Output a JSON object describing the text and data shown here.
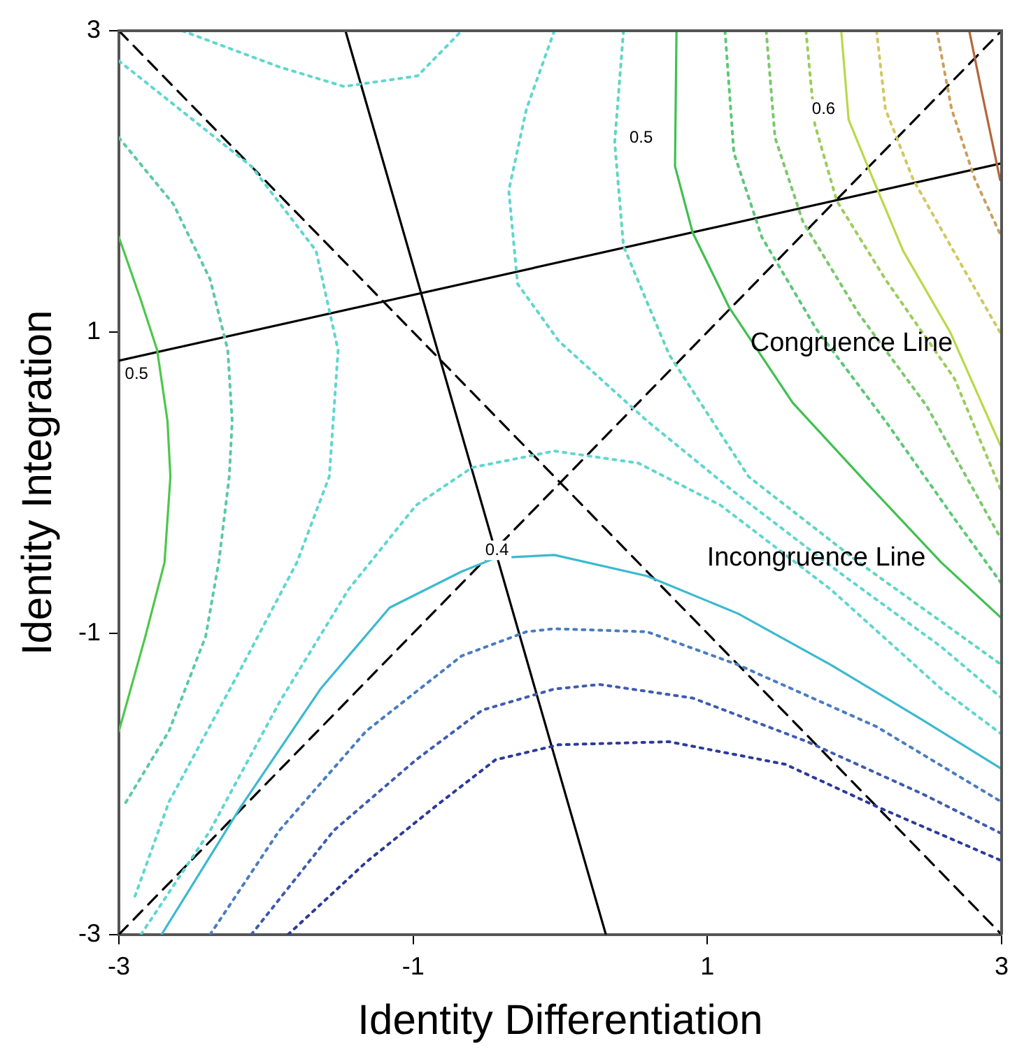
{
  "chart_data": {
    "type": "line",
    "xlabel": "Identity Differentiation",
    "ylabel": "Identity Integration",
    "xlim": [
      -3,
      3
    ],
    "ylim": [
      -3,
      3
    ],
    "xticks": [
      -3,
      -1,
      1,
      3
    ],
    "yticks": [
      -3,
      -1,
      1,
      3
    ],
    "grid": false,
    "legend": false,
    "marker": "none",
    "series": [
      {
        "color": "#4cc74c",
        "line_style": "solid",
        "x": [
          -3.0,
          -2.85,
          -2.74,
          -2.67,
          -2.65,
          -2.69,
          -2.82,
          -3.0
        ],
        "values": [
          1.63,
          1.21,
          0.88,
          0.41,
          0.04,
          -0.53,
          -1.02,
          -1.65
        ]
      },
      {
        "color": "#5cc9a0",
        "line_style": "dotted",
        "x": [
          -3.0,
          -2.63,
          -2.38,
          -2.26,
          -2.23,
          -2.25,
          -2.32,
          -2.41,
          -2.66,
          -2.97
        ],
        "values": [
          2.29,
          1.85,
          1.35,
          0.88,
          0.41,
          0.04,
          -0.52,
          -1.02,
          -1.65,
          -2.15
        ]
      },
      {
        "color": "#5fd6d0",
        "line_style": "dotted",
        "x": [
          -3.0,
          -2.1,
          -1.66,
          -1.51,
          -1.57,
          -1.79,
          -2.19,
          -2.66,
          -2.9
        ],
        "values": [
          2.8,
          2.1,
          1.54,
          0.88,
          0.04,
          -0.53,
          -1.27,
          -2.12,
          -2.77
        ]
      },
      {
        "color": "#5fd6d0",
        "line_style": "dotted",
        "x": [
          -2.57,
          -1.91,
          -1.47,
          -0.97,
          -0.67
        ],
        "values": [
          3.0,
          2.76,
          2.63,
          2.7,
          3.0
        ]
      },
      {
        "color": "#5fd6d0",
        "line_style": "dotted",
        "x": [
          -0.04,
          -0.23,
          -0.35,
          -0.29,
          -0.01,
          0.59,
          1.18,
          1.93,
          2.59,
          3.0
        ],
        "values": [
          3.0,
          2.48,
          1.94,
          1.32,
          0.94,
          0.41,
          -0.06,
          -0.62,
          -1.09,
          -1.43
        ]
      },
      {
        "color": "#5fd6c0",
        "line_style": "dotted",
        "x": [
          0.43,
          0.37,
          0.43,
          0.74,
          1.28,
          2.03,
          3.0
        ],
        "values": [
          3.0,
          2.26,
          1.57,
          0.85,
          0.04,
          -0.53,
          -1.21
        ]
      },
      {
        "color": "#5fd6d0",
        "line_style": "dotted",
        "x": [
          -2.85,
          -2.38,
          -1.91,
          -1.44,
          -0.98,
          -0.6,
          -0.04,
          0.53,
          1.09,
          1.84,
          2.59,
          3.0
        ],
        "values": [
          -3.0,
          -2.31,
          -1.46,
          -0.71,
          -0.15,
          0.1,
          0.21,
          0.13,
          -0.15,
          -0.71,
          -1.37,
          -1.67
        ]
      },
      {
        "color": "#3bb9d0",
        "line_style": "solid",
        "x": [
          -2.71,
          -2.17,
          -1.63,
          -1.16,
          -0.67,
          -0.44,
          -0.04,
          0.59,
          1.21,
          1.84,
          2.47,
          3.0
        ],
        "values": [
          -3.0,
          -2.15,
          -1.37,
          -0.83,
          -0.59,
          -0.5,
          -0.48,
          -0.62,
          -0.87,
          -1.21,
          -1.58,
          -1.9
        ]
      },
      {
        "color": "#4a7cc0",
        "line_style": "dotted",
        "x": [
          -2.38,
          -1.91,
          -1.32,
          -0.67,
          -0.23,
          -0.04,
          0.59,
          1.21,
          2.15,
          3.0
        ],
        "values": [
          -3.0,
          -2.31,
          -1.65,
          -1.15,
          -0.99,
          -0.97,
          -0.99,
          -1.21,
          -1.62,
          -2.12
        ]
      },
      {
        "color": "#3f5bb0",
        "line_style": "dotted",
        "x": [
          -2.1,
          -1.54,
          -0.98,
          -0.53,
          -0.04,
          0.27,
          0.9,
          1.68,
          2.47,
          3.0
        ],
        "values": [
          -3.0,
          -2.31,
          -1.84,
          -1.51,
          -1.37,
          -1.34,
          -1.43,
          -1.72,
          -2.07,
          -2.33
        ]
      },
      {
        "color": "#2b3a9a",
        "line_style": "dotted",
        "x": [
          -1.85,
          -1.32,
          -0.85,
          -0.44,
          -0.01,
          0.74,
          1.53,
          2.15,
          3.0
        ],
        "values": [
          -3.0,
          -2.52,
          -2.15,
          -1.84,
          -1.74,
          -1.72,
          -1.87,
          -2.15,
          -2.51
        ]
      },
      {
        "color": "#40c050",
        "line_style": "solid",
        "x": [
          0.79,
          0.78,
          0.9,
          1.15,
          1.58,
          2.09,
          2.59,
          3.0
        ],
        "values": [
          3.0,
          2.1,
          1.66,
          1.16,
          0.53,
          -0.01,
          -0.53,
          -0.9
        ]
      },
      {
        "color": "#5ac878",
        "line_style": "dotted",
        "x": [
          1.12,
          1.18,
          1.37,
          1.74,
          2.21,
          2.68,
          3.0
        ],
        "values": [
          3.0,
          2.19,
          1.63,
          1.02,
          0.41,
          -0.24,
          -0.67
        ]
      },
      {
        "color": "#7cc86a",
        "line_style": "dotted",
        "x": [
          1.4,
          1.46,
          1.65,
          2.03,
          2.49,
          3.0
        ],
        "values": [
          3.0,
          2.29,
          1.73,
          1.12,
          0.51,
          -0.38
        ]
      },
      {
        "color": "#9ccc5a",
        "line_style": "dotted",
        "x": [
          1.67,
          1.73,
          1.88,
          2.21,
          2.68,
          3.0
        ],
        "values": [
          3.0,
          2.38,
          1.87,
          1.35,
          0.69,
          -0.06
        ]
      },
      {
        "color": "#b8d94a",
        "line_style": "solid",
        "x": [
          1.91,
          1.96,
          2.09,
          2.33,
          2.65,
          3.0
        ],
        "values": [
          3.0,
          2.41,
          2.1,
          1.54,
          1.0,
          0.23
        ]
      },
      {
        "color": "#d0c860",
        "line_style": "dotted",
        "x": [
          2.15,
          2.21,
          2.4,
          2.73,
          3.0
        ],
        "values": [
          3.0,
          2.48,
          2.01,
          1.44,
          0.98
        ]
      },
      {
        "color": "#c8a060",
        "line_style": "dotted",
        "x": [
          2.56,
          2.66,
          2.82,
          3.0
        ],
        "values": [
          3.0,
          2.48,
          2.01,
          1.63
        ]
      },
      {
        "color": "#b5653a",
        "line_style": "solid",
        "x": [
          2.78,
          2.87,
          2.99
        ],
        "values": [
          3.0,
          2.57,
          2.01
        ]
      },
      {
        "color": "#000000",
        "line_style": "dashed",
        "x": [
          -3,
          3
        ],
        "values": [
          -3,
          3
        ]
      },
      {
        "color": "#000000",
        "line_style": "dashed",
        "x": [
          -3,
          3
        ],
        "values": [
          3,
          -3
        ]
      },
      {
        "color": "#000000",
        "line_style": "solid",
        "x": [
          -1.46,
          0.31
        ],
        "values": [
          3,
          -3
        ]
      },
      {
        "color": "#000000",
        "line_style": "solid",
        "x": [
          -3,
          3
        ],
        "values": [
          0.81,
          2.12
        ]
      }
    ],
    "annotations": [
      "Congruence Line",
      "Incongruence Line",
      {
        "text": "0.5",
        "x": -2.88,
        "y": 0.72
      },
      {
        "text": "0.5",
        "x": 0.55,
        "y": 2.29
      },
      {
        "text": "0.6",
        "x": 1.79,
        "y": 2.48
      },
      {
        "text": "0.4",
        "x": -0.43,
        "y": -0.45
      }
    ]
  }
}
